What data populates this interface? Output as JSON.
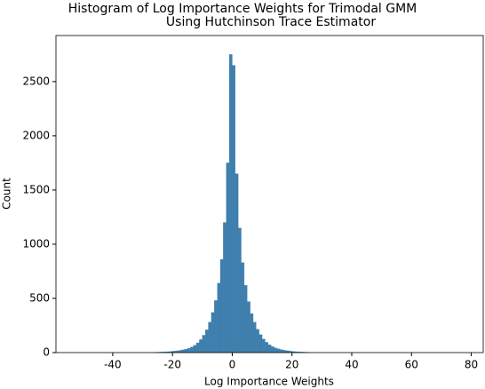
{
  "chart_data": {
    "type": "histogram",
    "title": [
      "Histogram of Log Importance Weights for Trimodal GMM",
      "Using Hutchinson Trace Estimator"
    ],
    "x_label": "Log Importance Weights",
    "y_label": "Count",
    "color": "#3f7fad",
    "bins": [
      -26,
      -25,
      -24,
      -23,
      -22,
      -21,
      -20,
      -19,
      -18,
      -17,
      -16,
      -15,
      -14,
      -13,
      -12,
      -11,
      -10,
      -9,
      -8,
      -7,
      -6,
      -5,
      -4,
      -3,
      -2,
      -1,
      0,
      1,
      2,
      3,
      4,
      5,
      6,
      7,
      8,
      9,
      10,
      11,
      12,
      13,
      14,
      15,
      16,
      17,
      18,
      19,
      20,
      21,
      22,
      23,
      24,
      25,
      26
    ],
    "values": [
      3,
      4,
      5,
      6,
      8,
      10,
      13,
      16,
      20,
      25,
      32,
      40,
      52,
      68,
      90,
      120,
      160,
      210,
      280,
      370,
      480,
      640,
      860,
      1200,
      1750,
      2750,
      2650,
      1650,
      1150,
      830,
      620,
      470,
      360,
      280,
      215,
      165,
      125,
      95,
      72,
      55,
      43,
      34,
      27,
      21,
      17,
      13,
      10,
      8,
      6,
      5,
      4,
      3
    ],
    "xlim": [
      -59,
      84
    ],
    "ylim": [
      0,
      2925
    ],
    "xticks": [
      -40,
      -20,
      0,
      20,
      40,
      60,
      80
    ],
    "yticks": [
      0,
      500,
      1000,
      1500,
      2000,
      2500
    ]
  }
}
